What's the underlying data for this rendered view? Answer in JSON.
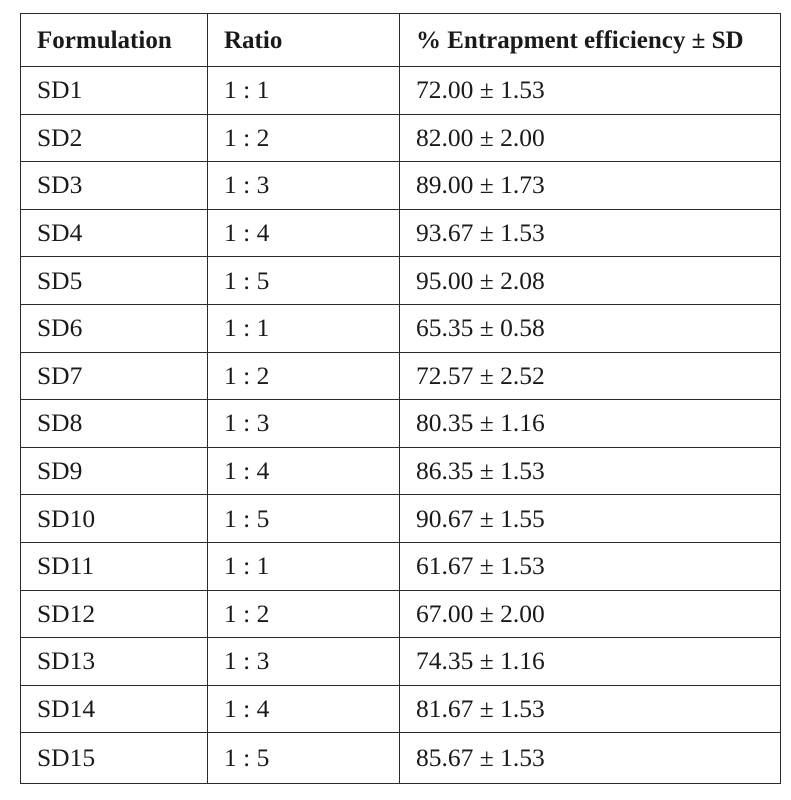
{
  "table": {
    "columns": [
      "Formulation",
      "Ratio",
      "% Entrapment efficiency ± SD"
    ],
    "rows": [
      {
        "formulation": "SD1",
        "ratio": "1 : 1",
        "efficiency": "72.00 ± 1.53"
      },
      {
        "formulation": "SD2",
        "ratio": "1 : 2",
        "efficiency": "82.00 ± 2.00"
      },
      {
        "formulation": "SD3",
        "ratio": "1 : 3",
        "efficiency": "89.00 ± 1.73"
      },
      {
        "formulation": "SD4",
        "ratio": "1 : 4",
        "efficiency": "93.67 ± 1.53"
      },
      {
        "formulation": "SD5",
        "ratio": "1 : 5",
        "efficiency": "95.00 ± 2.08"
      },
      {
        "formulation": "SD6",
        "ratio": "1 : 1",
        "efficiency": "65.35 ± 0.58"
      },
      {
        "formulation": "SD7",
        "ratio": "1 : 2",
        "efficiency": "72.57 ± 2.52"
      },
      {
        "formulation": "SD8",
        "ratio": "1 : 3",
        "efficiency": "80.35 ± 1.16"
      },
      {
        "formulation": "SD9",
        "ratio": "1 : 4",
        "efficiency": "86.35 ± 1.53"
      },
      {
        "formulation": "SD10",
        "ratio": "1 : 5",
        "efficiency": "90.67 ± 1.55"
      },
      {
        "formulation": "SD11",
        "ratio": "1 : 1",
        "efficiency": "61.67 ± 1.53"
      },
      {
        "formulation": "SD12",
        "ratio": "1 : 2",
        "efficiency": "67.00 ± 2.00"
      },
      {
        "formulation": "SD13",
        "ratio": "1 : 3",
        "efficiency": "74.35 ± 1.16"
      },
      {
        "formulation": "SD14",
        "ratio": "1 : 4",
        "efficiency": "81.67 ± 1.53"
      },
      {
        "formulation": "SD15",
        "ratio": "1 : 5",
        "efficiency": "85.67 ± 1.53"
      }
    ]
  }
}
